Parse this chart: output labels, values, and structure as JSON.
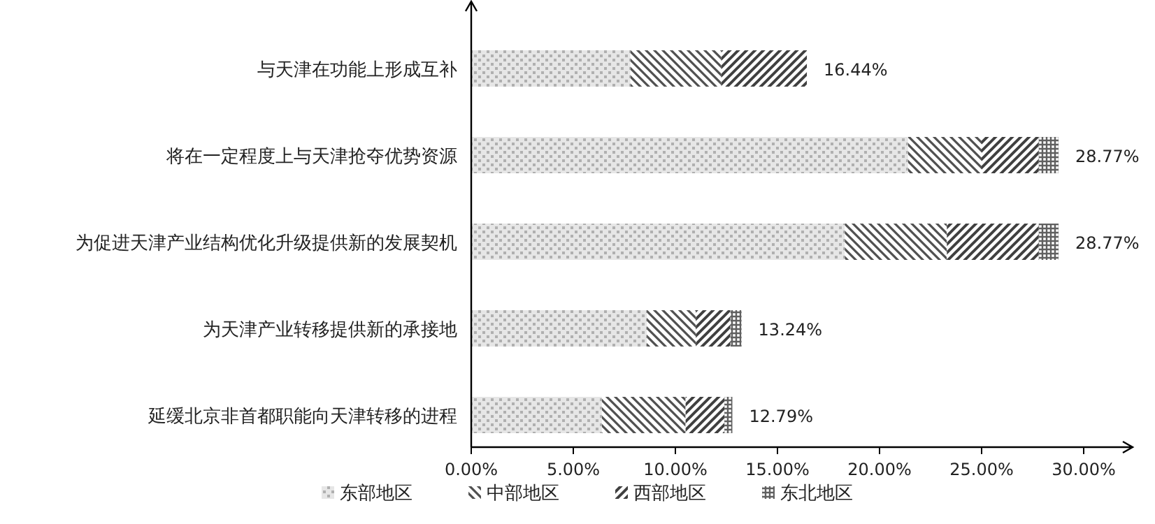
{
  "chart_data": {
    "type": "bar",
    "orientation": "horizontal",
    "stacked": true,
    "categories": [
      "与天津在功能上形成互补",
      "将在一定程度上与天津抢夺优势资源",
      "为促进天津产业结构优化升级提供新的发展契机",
      "为天津产业转移提供新的承接地",
      "延缓北京非首都职能向天津转移的进程"
    ],
    "series": [
      {
        "name": "东部地区",
        "color": "#b0b0b0",
        "values": [
          7.8,
          21.4,
          18.3,
          8.6,
          6.4
        ]
      },
      {
        "name": "中部地区",
        "color": "#505050",
        "values": [
          4.45,
          3.6,
          5.0,
          2.4,
          4.1
        ]
      },
      {
        "name": "西部地区",
        "color": "#404040",
        "values": [
          4.19,
          2.8,
          4.5,
          1.7,
          1.9
        ]
      },
      {
        "name": "东北地区",
        "color": "#606060",
        "values": [
          0,
          0.97,
          0.97,
          0.54,
          0.39
        ]
      }
    ],
    "totals": [
      "16.44%",
      "28.77%",
      "28.77%",
      "13.24%",
      "12.79%"
    ],
    "xlim": [
      0,
      30
    ],
    "xticks": [
      {
        "value": 0,
        "label": "0.00%"
      },
      {
        "value": 5,
        "label": "5.00%"
      },
      {
        "value": 10,
        "label": "10.00%"
      },
      {
        "value": 15,
        "label": "15.00%"
      },
      {
        "value": 20,
        "label": "20.00%"
      },
      {
        "value": 25,
        "label": "25.00%"
      },
      {
        "value": 30,
        "label": "30.00%"
      }
    ],
    "grid": false,
    "legend": "bottom"
  }
}
